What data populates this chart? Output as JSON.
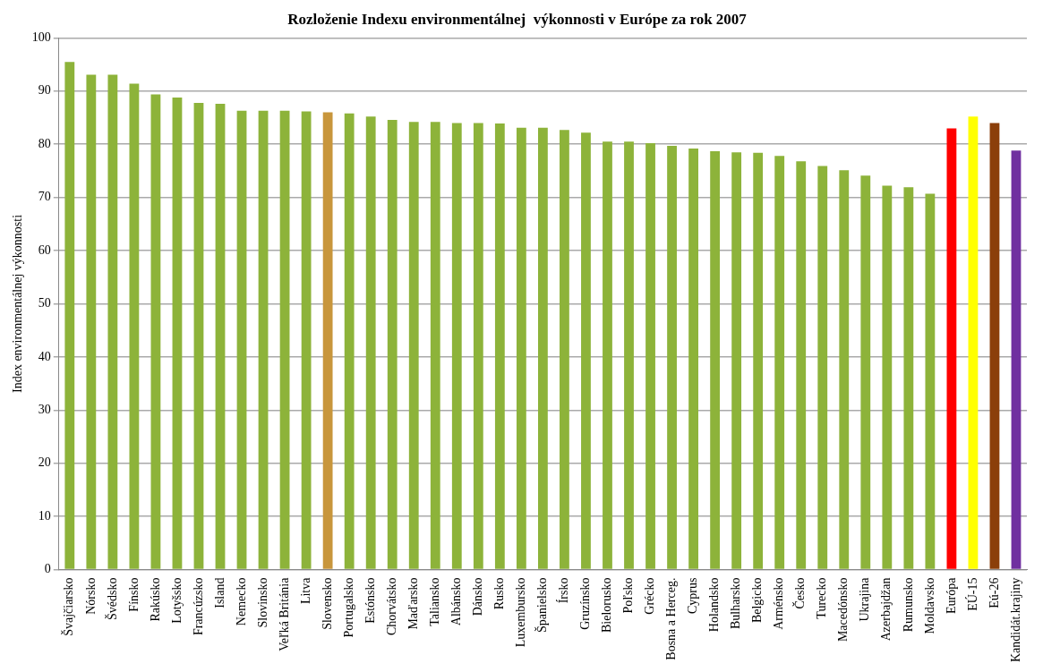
{
  "chart_data": {
    "type": "bar",
    "title": "Rozloženie Indexu environmentálnej  výkonnosti v Európe za rok 2007",
    "ylabel": "Index environmentálnej výkonnosti",
    "categories": [
      "Švajčiarsko",
      "Nórsko",
      "Švédsko",
      "Fínsko",
      "Rakúsko",
      "Lotyšsko",
      "Francúzsko",
      "Island",
      "Nemecko",
      "Slovinsko",
      "Veľká Británia",
      "Litva",
      "Slovensko",
      "Portugalsko",
      "Estónsko",
      "Chorvátsko",
      "Maďarsko",
      "Taliansko",
      "Albánsko",
      "Dánsko",
      "Rusko",
      "Luxembursko",
      "Španielsko",
      "Írsko",
      "Gruzínsko",
      "Bielorusko",
      "Poľsko",
      "Grécko",
      "Bosna a Herceg.",
      "Cyprus",
      "Holandsko",
      "Bulharsko",
      "Belgicko",
      "Arménsko",
      "Česko",
      "Turecko",
      "Macedónsko",
      "Ukrajina",
      "Azerbajdžan",
      "Rumunsko",
      "Moldavsko",
      "Európa",
      "EÚ-15",
      "Eú-26",
      "Kandidát.krajiny"
    ],
    "values": [
      95.5,
      93.1,
      93.1,
      91.4,
      89.4,
      88.8,
      87.8,
      87.6,
      86.3,
      86.3,
      86.3,
      86.2,
      86.0,
      85.8,
      85.2,
      84.6,
      84.2,
      84.2,
      84.0,
      84.0,
      83.9,
      83.1,
      83.1,
      82.7,
      82.2,
      80.5,
      80.5,
      80.2,
      79.7,
      79.2,
      78.7,
      78.5,
      78.4,
      77.8,
      76.8,
      75.9,
      75.1,
      74.1,
      72.2,
      71.9,
      70.7,
      83.0,
      85.2,
      84.0,
      78.8
    ],
    "colors": [
      "#8db33a",
      "#8db33a",
      "#8db33a",
      "#8db33a",
      "#8db33a",
      "#8db33a",
      "#8db33a",
      "#8db33a",
      "#8db33a",
      "#8db33a",
      "#8db33a",
      "#8db33a",
      "#c8963c",
      "#8db33a",
      "#8db33a",
      "#8db33a",
      "#8db33a",
      "#8db33a",
      "#8db33a",
      "#8db33a",
      "#8db33a",
      "#8db33a",
      "#8db33a",
      "#8db33a",
      "#8db33a",
      "#8db33a",
      "#8db33a",
      "#8db33a",
      "#8db33a",
      "#8db33a",
      "#8db33a",
      "#8db33a",
      "#8db33a",
      "#8db33a",
      "#8db33a",
      "#8db33a",
      "#8db33a",
      "#8db33a",
      "#8db33a",
      "#8db33a",
      "#8db33a",
      "#ff0000",
      "#ffff00",
      "#8b3f0a",
      "#7030a0"
    ],
    "ylim": [
      0,
      100
    ],
    "yticks": [
      0,
      10,
      20,
      30,
      40,
      50,
      60,
      70,
      80,
      90,
      100
    ],
    "grid": "y",
    "legend": false
  }
}
